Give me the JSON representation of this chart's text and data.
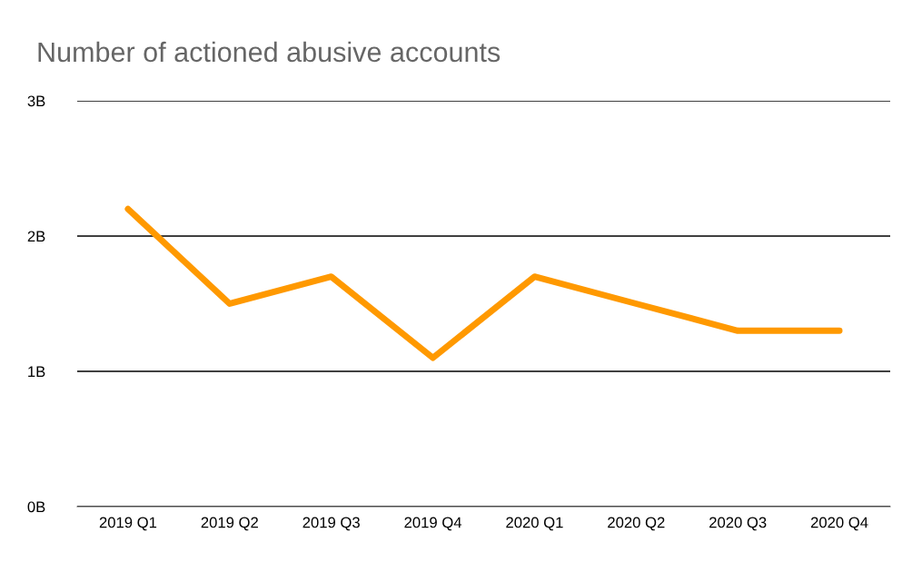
{
  "chart_data": {
    "type": "line",
    "title": "Number of actioned abusive accounts",
    "categories": [
      "2019 Q1",
      "2019 Q2",
      "2019 Q3",
      "2019 Q4",
      "2020 Q1",
      "2020 Q2",
      "2020 Q3",
      "2020 Q4"
    ],
    "series": [
      {
        "color": "#ff9900",
        "values": [
          2.2,
          1.5,
          1.7,
          1.1,
          1.7,
          1.5,
          1.3,
          1.3
        ]
      }
    ],
    "ylim": [
      0,
      3
    ],
    "yticks": [
      {
        "value": 0,
        "label": "0B"
      },
      {
        "value": 1,
        "label": "1B"
      },
      {
        "value": 2,
        "label": "2B"
      },
      {
        "value": 3,
        "label": "3B"
      }
    ],
    "grid": "y",
    "marker": "none",
    "line_style": "solid"
  }
}
